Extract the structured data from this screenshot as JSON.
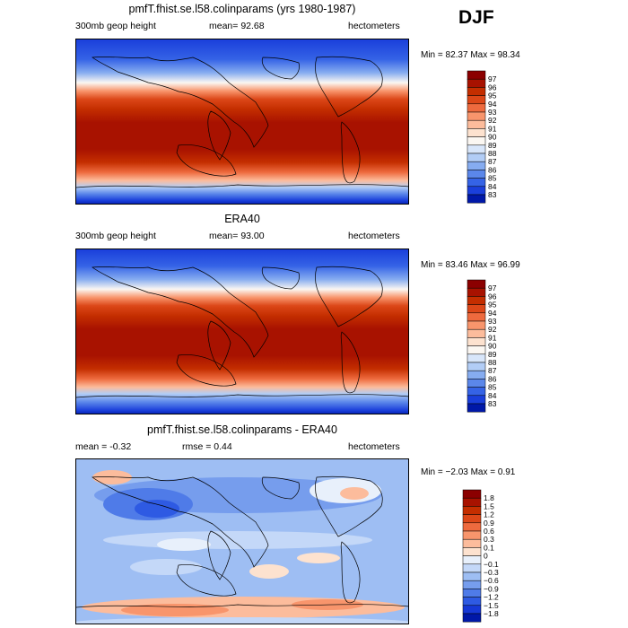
{
  "season": "DJF",
  "panels": [
    {
      "title": "pmfT.fhist.se.l58.colinparams (yrs 1980-1987)",
      "left": "300mb geop height",
      "center": "mean=  92.68",
      "right": "hectometers",
      "minmax": "Min =  82.37 Max =  98.34"
    },
    {
      "title": "ERA40",
      "left": "300mb geop height",
      "center": "mean=  93.00",
      "right": "hectometers",
      "minmax": "Min =  83.46 Max =  96.99"
    },
    {
      "title": "pmfT.fhist.se.l58.colinparams - ERA40",
      "left": "mean =  -0.32",
      "center": "rmse =   0.44",
      "right": "hectometers",
      "minmax": "Min = −2.03 Max =   0.91"
    }
  ],
  "chart_data": [
    {
      "type": "heatmap",
      "title": "pmfT.fhist.se.l58.colinparams (yrs 1980-1987)",
      "variable": "300mb geop height",
      "units": "hectometers",
      "mean": 92.68,
      "min": 82.37,
      "max": 98.34,
      "colorbar_levels": [
        "97",
        "96",
        "95",
        "94",
        "93",
        "92",
        "91",
        "90",
        "89",
        "88",
        "87",
        "86",
        "85",
        "84",
        "83"
      ],
      "colorbar_colors": [
        "#8b0000",
        "#a81200",
        "#c42e00",
        "#dc4718",
        "#ee6a3e",
        "#f8956c",
        "#fcbc9c",
        "#fde2cf",
        "#fbf7f2",
        "#d8e6fa",
        "#b2cdf6",
        "#86acf0",
        "#5b87ea",
        "#3563e6",
        "#1a3fdb",
        "#0018a8"
      ]
    },
    {
      "type": "heatmap",
      "title": "ERA40",
      "variable": "300mb geop height",
      "units": "hectometers",
      "mean": 93.0,
      "min": 83.46,
      "max": 96.99,
      "colorbar_levels": [
        "97",
        "96",
        "95",
        "94",
        "93",
        "92",
        "91",
        "90",
        "89",
        "88",
        "87",
        "86",
        "85",
        "84",
        "83"
      ],
      "colorbar_colors": [
        "#8b0000",
        "#a81200",
        "#c42e00",
        "#dc4718",
        "#ee6a3e",
        "#f8956c",
        "#fcbc9c",
        "#fde2cf",
        "#fbf7f2",
        "#d8e6fa",
        "#b2cdf6",
        "#86acf0",
        "#5b87ea",
        "#3563e6",
        "#1a3fdb",
        "#0018a8"
      ]
    },
    {
      "type": "heatmap",
      "title": "pmfT.fhist.se.l58.colinparams - ERA40",
      "units": "hectometers",
      "mean": -0.32,
      "rmse": 0.44,
      "min": -2.03,
      "max": 0.91,
      "colorbar_levels": [
        "1.8",
        "1.5",
        "1.2",
        "0.9",
        "0.6",
        "0.3",
        "0.1",
        "0",
        "−0.1",
        "−0.3",
        "−0.6",
        "−0.9",
        "−1.2",
        "−1.5",
        "−1.8"
      ],
      "colorbar_colors": [
        "#8b0000",
        "#a81200",
        "#c42e00",
        "#dc4718",
        "#ee6a3e",
        "#f8956c",
        "#fcbc9c",
        "#fde2cf",
        "#e8f0fb",
        "#c4d8f8",
        "#9ebef3",
        "#769ded",
        "#4f7be8",
        "#2e5ae3",
        "#1638d6",
        "#0018a8"
      ]
    }
  ]
}
